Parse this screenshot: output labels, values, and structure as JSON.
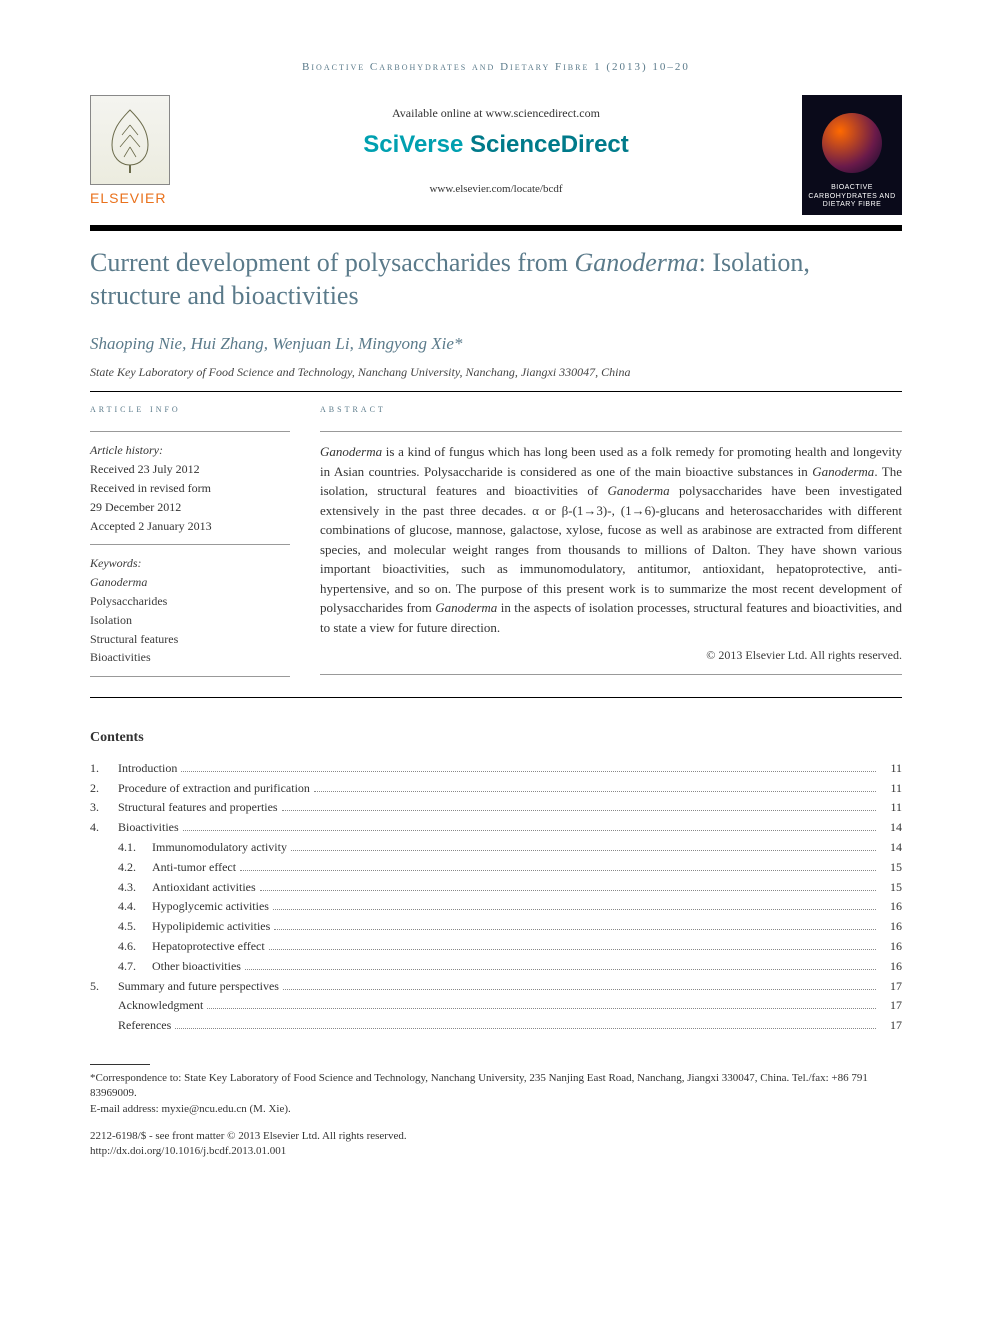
{
  "running_head": "Bioactive Carbohydrates and Dietary Fibre 1 (2013) 10–20",
  "header": {
    "elsevier_label": "ELSEVIER",
    "available_text": "Available online at www.sciencedirect.com",
    "sciverse_a": "SciVerse ",
    "sciverse_b": "ScienceDirect",
    "journal_url": "www.elsevier.com/locate/bcdf",
    "journal_cover_name": "BIOACTIVE CARBOHYDRATES AND DIETARY FIBRE"
  },
  "title_plain_a": "Current development of polysaccharides from ",
  "title_ital": "Ganoderma",
  "title_plain_b": ": Isolation, structure and bioactivities",
  "authors": "Shaoping Nie, Hui Zhang, Wenjuan Li, Mingyong Xie*",
  "affiliation": "State Key Laboratory of Food Science and Technology, Nanchang University, Nanchang, Jiangxi 330047, China",
  "info_head": "article info",
  "abstract_head": "abstract",
  "article_history": {
    "label": "Article history:",
    "received": "Received 23 July 2012",
    "revised_a": "Received in revised form",
    "revised_b": "29 December 2012",
    "accepted": "Accepted 2 January 2013"
  },
  "keywords_label": "Keywords:",
  "keywords": [
    "Ganoderma",
    "Polysaccharides",
    "Isolation",
    "Structural features",
    "Bioactivities"
  ],
  "abstract_parts": {
    "p1a": "Ganoderma",
    "p1b": " is a kind of fungus which has long been used as a folk remedy for promoting health and longevity in Asian countries. Polysaccharide is considered as one of the main bioactive substances in ",
    "p1c": "Ganoderma",
    "p1d": ". The isolation, structural features and bioactivities of ",
    "p1e": "Ganoderma",
    "p1f": " polysaccharides have been investigated extensively in the past three decades. α or β-(1→3)-, (1→6)-glucans and heterosaccharides with different combinations of glucose, mannose, galactose, xylose, fucose as well as arabinose are extracted from different species, and molecular weight ranges from thousands to millions of Dalton. They have shown various important bioactivities, such as immunomodulatory, antitumor, antioxidant, hepatoprotective, anti-hypertensive, and so on. The purpose of this present work is to summarize the most recent development of polysaccharides from ",
    "p1g": "Ganoderma",
    "p1h": " in the aspects of isolation processes, structural features and bioactivities, and to state a view for future direction."
  },
  "copyright": "© 2013 Elsevier Ltd. All rights reserved.",
  "contents_head": "Contents",
  "toc": [
    {
      "num": "1.",
      "label": "Introduction",
      "page": "11",
      "sub": false
    },
    {
      "num": "2.",
      "label": "Procedure of extraction and purification",
      "page": "11",
      "sub": false
    },
    {
      "num": "3.",
      "label": "Structural features and properties",
      "page": "11",
      "sub": false
    },
    {
      "num": "4.",
      "label": "Bioactivities",
      "page": "14",
      "sub": false
    },
    {
      "num": "4.1.",
      "label": "Immunomodulatory activity",
      "page": "14",
      "sub": true
    },
    {
      "num": "4.2.",
      "label": "Anti-tumor effect",
      "page": "15",
      "sub": true
    },
    {
      "num": "4.3.",
      "label": "Antioxidant activities",
      "page": "15",
      "sub": true
    },
    {
      "num": "4.4.",
      "label": "Hypoglycemic activities",
      "page": "16",
      "sub": true
    },
    {
      "num": "4.5.",
      "label": "Hypolipidemic activities",
      "page": "16",
      "sub": true
    },
    {
      "num": "4.6.",
      "label": "Hepatoprotective effect",
      "page": "16",
      "sub": true
    },
    {
      "num": "4.7.",
      "label": "Other bioactivities",
      "page": "16",
      "sub": true
    },
    {
      "num": "5.",
      "label": "Summary and future perspectives",
      "page": "17",
      "sub": false
    },
    {
      "num": "",
      "label": "Acknowledgment",
      "page": "17",
      "sub": false
    },
    {
      "num": "",
      "label": "References",
      "page": "17",
      "sub": false
    }
  ],
  "footnote": {
    "corr": "*Correspondence to: State Key Laboratory of Food Science and Technology, Nanchang University, 235 Nanjing East Road, Nanchang, Jiangxi 330047, China. Tel./fax: +86 791 83969009.",
    "email_label": "E-mail address: ",
    "email": "myxie@ncu.edu.cn",
    "email_who": " (M. Xie)."
  },
  "footer": {
    "issn": "2212-6198/$ - see front matter © 2013 Elsevier Ltd. All rights reserved.",
    "doi": "http://dx.doi.org/10.1016/j.bcdf.2013.01.001"
  },
  "colors": {
    "accent": "#5a7a8a",
    "elsevier_orange": "#e9711c",
    "sciverse_teal": "#00a0b0"
  }
}
